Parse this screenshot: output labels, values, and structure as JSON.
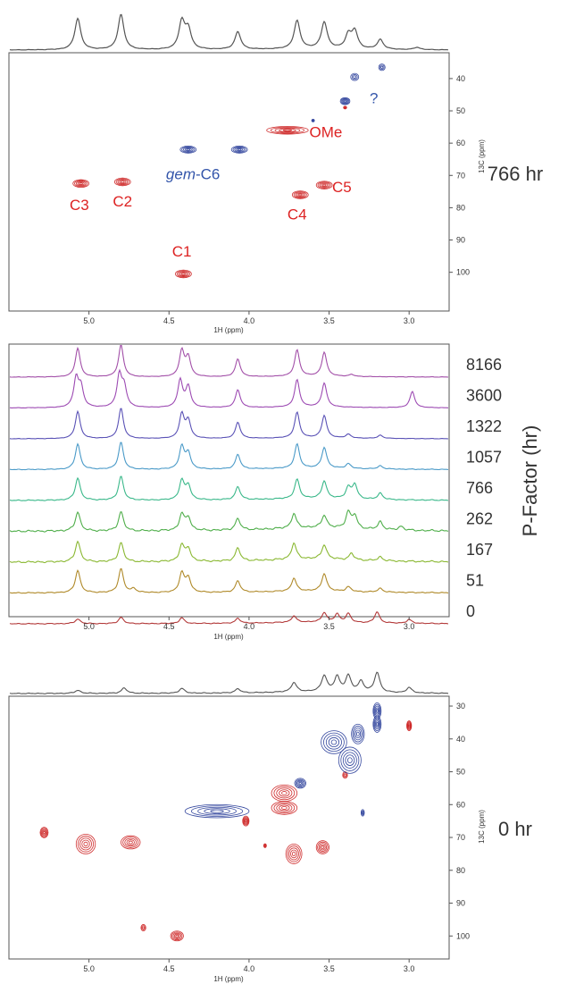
{
  "figure_labels": {
    "top_time": "766 hr",
    "bottom_time": "0 hr"
  },
  "colors": {
    "projection": "#555555",
    "positive_contour": "#cc2222",
    "negative_contour": "#2b3f9a",
    "annotation_red": "#dd2222",
    "annotation_blue": "#3355aa"
  },
  "chart_data": [
    {
      "id": "hsqc_766",
      "type": "scatter",
      "title": "",
      "xlabel": "1H (ppm)",
      "ylabel": "13C (ppm)",
      "xlim": [
        5.5,
        2.75
      ],
      "ylim": [
        112,
        32
      ],
      "x_ticks": [
        "5.0",
        "4.5",
        "4.0",
        "3.5",
        "3.0"
      ],
      "y_ticks": [
        "40",
        "50",
        "60",
        "70",
        "80",
        "90",
        "100"
      ],
      "grid": false,
      "time_label": "766 hr",
      "projection_peaks": [
        [
          5.07,
          0.8
        ],
        [
          4.8,
          0.9
        ],
        [
          4.42,
          0.7
        ],
        [
          4.38,
          0.5
        ],
        [
          4.07,
          0.45
        ],
        [
          3.7,
          0.72
        ],
        [
          3.53,
          0.68
        ],
        [
          3.38,
          0.35
        ],
        [
          3.34,
          0.45
        ],
        [
          3.18,
          0.25
        ],
        [
          2.95,
          0.06
        ]
      ],
      "series": [
        {
          "name": "",
          "sign": "positive",
          "points": [
            {
              "x": 5.05,
              "y": 72.5,
              "wx": 0.05,
              "wy": 1.2
            },
            {
              "x": 4.79,
              "y": 72.0,
              "wx": 0.05,
              "wy": 1.2
            },
            {
              "x": 4.41,
              "y": 100.5,
              "wx": 0.05,
              "wy": 1.2
            },
            {
              "x": 3.76,
              "y": 56.0,
              "wx": 0.13,
              "wy": 1.2
            },
            {
              "x": 3.68,
              "y": 76.0,
              "wx": 0.05,
              "wy": 1.2
            },
            {
              "x": 3.53,
              "y": 73.0,
              "wx": 0.05,
              "wy": 1.2
            },
            {
              "x": 3.4,
              "y": 49.0,
              "wx": 0.01,
              "wy": 0.4
            }
          ]
        },
        {
          "name": "",
          "sign": "negative",
          "points": [
            {
              "x": 4.38,
              "y": 62.0,
              "wx": 0.05,
              "wy": 1.1
            },
            {
              "x": 4.06,
              "y": 62.0,
              "wx": 0.05,
              "wy": 1.1
            },
            {
              "x": 3.4,
              "y": 47.0,
              "wx": 0.03,
              "wy": 1.1
            },
            {
              "x": 3.34,
              "y": 39.5,
              "wx": 0.025,
              "wy": 1.1
            },
            {
              "x": 3.17,
              "y": 36.5,
              "wx": 0.02,
              "wy": 1.0
            },
            {
              "x": 3.6,
              "y": 53.0,
              "wx": 0.007,
              "wy": 0.4
            }
          ]
        }
      ],
      "annotations": [
        {
          "text": "C3",
          "x": 5.06,
          "y": 79,
          "color": "red"
        },
        {
          "text": "C2",
          "x": 4.79,
          "y": 78,
          "color": "red"
        },
        {
          "text": "C1",
          "x": 4.42,
          "y": 93.5,
          "color": "red"
        },
        {
          "text": "C4",
          "x": 3.7,
          "y": 82,
          "color": "red"
        },
        {
          "text": "C5",
          "x": 3.42,
          "y": 73.5,
          "color": "red"
        },
        {
          "text": "OMe",
          "x": 3.52,
          "y": 56.5,
          "color": "red"
        },
        {
          "text": "gem-C6",
          "x": 4.35,
          "y": 69.5,
          "color": "blue"
        },
        {
          "text": "?",
          "x": 3.22,
          "y": 46,
          "color": "blue"
        }
      ]
    },
    {
      "id": "stacked_spectra",
      "type": "line",
      "title": "",
      "xlabel": "1H (ppm)",
      "ylabel": "P-Factor (hr)",
      "xlim": [
        5.5,
        2.75
      ],
      "x_ticks": [
        "5.0",
        "4.5",
        "4.0",
        "3.5",
        "3.0"
      ],
      "grid": false,
      "series": [
        {
          "name": "8166",
          "color": "#a24fa8",
          "noise": 0.05,
          "peaks": [
            [
              5.07,
              0.9
            ],
            [
              4.8,
              1.0
            ],
            [
              4.42,
              0.8
            ],
            [
              4.38,
              0.6
            ],
            [
              4.07,
              0.55
            ],
            [
              3.7,
              0.82
            ],
            [
              3.53,
              0.75
            ],
            [
              3.36,
              0.06
            ]
          ]
        },
        {
          "name": "3600",
          "color": "#9d4bb3",
          "noise": 0.05,
          "peaks": [
            [
              5.08,
              0.9
            ],
            [
              5.05,
              0.6
            ],
            [
              4.81,
              1.0
            ],
            [
              4.78,
              0.6
            ],
            [
              4.43,
              0.85
            ],
            [
              4.38,
              0.65
            ],
            [
              4.07,
              0.55
            ],
            [
              3.7,
              0.85
            ],
            [
              3.53,
              0.75
            ],
            [
              2.98,
              0.5
            ]
          ]
        },
        {
          "name": "1322",
          "color": "#5a52b6",
          "noise": 0.05,
          "peaks": [
            [
              5.07,
              0.85
            ],
            [
              4.8,
              0.95
            ],
            [
              4.42,
              0.75
            ],
            [
              4.38,
              0.55
            ],
            [
              4.07,
              0.5
            ],
            [
              3.7,
              0.8
            ],
            [
              3.53,
              0.7
            ],
            [
              3.38,
              0.12
            ],
            [
              3.18,
              0.1
            ]
          ]
        },
        {
          "name": "1057",
          "color": "#4a9ac8",
          "noise": 0.09,
          "peaks": [
            [
              5.07,
              0.8
            ],
            [
              4.8,
              0.85
            ],
            [
              4.42,
              0.7
            ],
            [
              4.38,
              0.5
            ],
            [
              4.07,
              0.45
            ],
            [
              3.7,
              0.75
            ],
            [
              3.53,
              0.65
            ],
            [
              3.38,
              0.15
            ],
            [
              3.18,
              0.1
            ]
          ]
        },
        {
          "name": "766",
          "color": "#3ab88a",
          "noise": 0.12,
          "peaks": [
            [
              5.07,
              0.7
            ],
            [
              4.8,
              0.75
            ],
            [
              4.42,
              0.6
            ],
            [
              4.38,
              0.45
            ],
            [
              4.07,
              0.4
            ],
            [
              3.7,
              0.6
            ],
            [
              3.53,
              0.55
            ],
            [
              3.38,
              0.35
            ],
            [
              3.34,
              0.45
            ],
            [
              3.18,
              0.2
            ]
          ]
        },
        {
          "name": "262",
          "color": "#4fae4a",
          "noise": 0.22,
          "peaks": [
            [
              5.07,
              0.6
            ],
            [
              4.8,
              0.6
            ],
            [
              4.42,
              0.5
            ],
            [
              4.38,
              0.4
            ],
            [
              4.07,
              0.35
            ],
            [
              3.72,
              0.45
            ],
            [
              3.53,
              0.4
            ],
            [
              3.38,
              0.5
            ],
            [
              3.34,
              0.4
            ],
            [
              3.18,
              0.25
            ],
            [
              3.05,
              0.12
            ]
          ]
        },
        {
          "name": "167",
          "color": "#8ab832",
          "noise": 0.2,
          "peaks": [
            [
              5.07,
              0.65
            ],
            [
              4.8,
              0.6
            ],
            [
              4.42,
              0.5
            ],
            [
              4.38,
              0.4
            ],
            [
              4.07,
              0.4
            ],
            [
              3.72,
              0.5
            ],
            [
              3.53,
              0.45
            ],
            [
              3.36,
              0.2
            ],
            [
              3.18,
              0.12
            ]
          ]
        },
        {
          "name": "51",
          "color": "#b08a2a",
          "noise": 0.12,
          "peaks": [
            [
              5.07,
              0.7
            ],
            [
              4.8,
              0.75
            ],
            [
              4.72,
              0.12
            ],
            [
              4.42,
              0.6
            ],
            [
              4.38,
              0.45
            ],
            [
              4.07,
              0.35
            ],
            [
              3.72,
              0.4
            ],
            [
              3.53,
              0.55
            ],
            [
              3.38,
              0.15
            ],
            [
              3.18,
              0.12
            ]
          ]
        },
        {
          "name": "0",
          "color": "#b33a3a",
          "noise": 0.1,
          "peaks": [
            [
              5.07,
              0.15
            ],
            [
              4.8,
              0.2
            ],
            [
              4.42,
              0.18
            ],
            [
              4.07,
              0.15
            ],
            [
              3.72,
              0.2
            ],
            [
              3.53,
              0.3
            ],
            [
              3.45,
              0.25
            ],
            [
              3.38,
              0.28
            ],
            [
              3.2,
              0.35
            ],
            [
              3.0,
              0.12
            ]
          ]
        }
      ]
    },
    {
      "id": "hsqc_0",
      "type": "scatter",
      "title": "",
      "xlabel": "1H (ppm)",
      "ylabel": "13C (ppm)",
      "xlim": [
        5.5,
        2.75
      ],
      "ylim": [
        107,
        27
      ],
      "x_ticks": [
        "5.0",
        "4.5",
        "4.0",
        "3.5",
        "3.0"
      ],
      "y_ticks": [
        "30",
        "40",
        "50",
        "60",
        "70",
        "80",
        "90",
        "100"
      ],
      "grid": false,
      "time_label": "0 hr",
      "projection_peaks": [
        [
          5.07,
          0.12
        ],
        [
          4.78,
          0.2
        ],
        [
          4.42,
          0.18
        ],
        [
          4.07,
          0.15
        ],
        [
          3.72,
          0.35
        ],
        [
          3.53,
          0.6
        ],
        [
          3.45,
          0.55
        ],
        [
          3.38,
          0.6
        ],
        [
          3.3,
          0.4
        ],
        [
          3.2,
          0.75
        ],
        [
          3.0,
          0.2
        ]
      ],
      "series": [
        {
          "name": "",
          "sign": "positive",
          "points": [
            {
              "x": 5.28,
              "y": 68.5,
              "wx": 0.025,
              "wy": 1.6
            },
            {
              "x": 5.02,
              "y": 72.0,
              "wx": 0.06,
              "wy": 3.0
            },
            {
              "x": 4.74,
              "y": 71.5,
              "wx": 0.06,
              "wy": 2.0
            },
            {
              "x": 4.66,
              "y": 97.5,
              "wx": 0.015,
              "wy": 1.0
            },
            {
              "x": 4.45,
              "y": 100.0,
              "wx": 0.04,
              "wy": 1.5
            },
            {
              "x": 4.02,
              "y": 65.0,
              "wx": 0.02,
              "wy": 1.5
            },
            {
              "x": 3.78,
              "y": 56.5,
              "wx": 0.08,
              "wy": 2.5
            },
            {
              "x": 3.78,
              "y": 61.0,
              "wx": 0.08,
              "wy": 2.0
            },
            {
              "x": 3.72,
              "y": 75.0,
              "wx": 0.05,
              "wy": 3.0
            },
            {
              "x": 3.54,
              "y": 73.0,
              "wx": 0.04,
              "wy": 2.0
            },
            {
              "x": 3.4,
              "y": 51.0,
              "wx": 0.015,
              "wy": 1.0
            },
            {
              "x": 3.0,
              "y": 36.0,
              "wx": 0.015,
              "wy": 1.5
            },
            {
              "x": 3.9,
              "y": 72.5,
              "wx": 0.005,
              "wy": 0.6
            }
          ]
        },
        {
          "name": "",
          "sign": "negative",
          "points": [
            {
              "x": 4.2,
              "y": 62.0,
              "wx": 0.2,
              "wy": 2.0
            },
            {
              "x": 3.68,
              "y": 53.5,
              "wx": 0.035,
              "wy": 1.5
            },
            {
              "x": 3.47,
              "y": 41.0,
              "wx": 0.08,
              "wy": 3.5
            },
            {
              "x": 3.37,
              "y": 46.5,
              "wx": 0.07,
              "wy": 4.0
            },
            {
              "x": 3.32,
              "y": 38.5,
              "wx": 0.04,
              "wy": 3.0
            },
            {
              "x": 3.2,
              "y": 31.5,
              "wx": 0.025,
              "wy": 2.5
            },
            {
              "x": 3.2,
              "y": 35.5,
              "wx": 0.025,
              "wy": 2.5
            },
            {
              "x": 3.29,
              "y": 62.5,
              "wx": 0.01,
              "wy": 1.0
            }
          ]
        }
      ],
      "annotations": []
    }
  ]
}
